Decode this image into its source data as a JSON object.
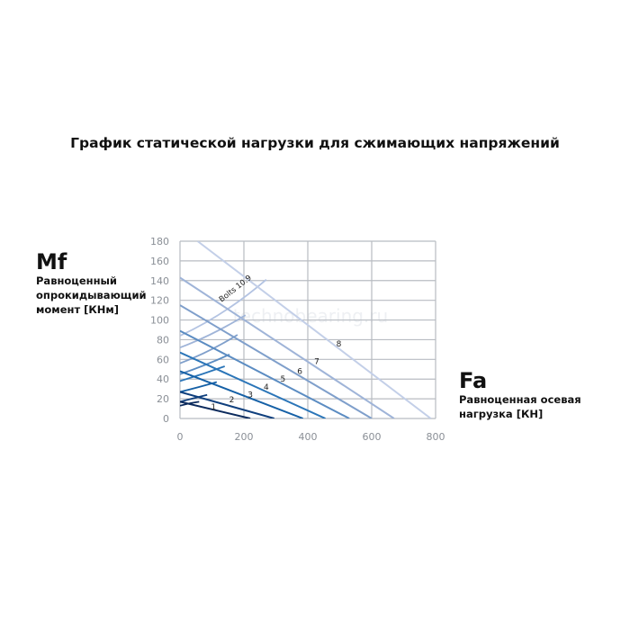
{
  "title": "График статической нагрузки для сжимающих напряжений",
  "y_label": {
    "symbol": "Mf",
    "text": "Равноценный опрокидывающий момент [КНм]"
  },
  "x_label": {
    "symbol": "Fa",
    "text": "Равноценная осевая нагрузка [КН]"
  },
  "watermark": "technobearing.ru",
  "chart_data": {
    "type": "line",
    "title": "График статической нагрузки для сжимающих напряжений",
    "xlabel": "Fa Равноценная осевая нагрузка [КН]",
    "ylabel": "Mf Равноценный опрокидывающий момент [КНм]",
    "xlim": [
      0,
      800
    ],
    "ylim": [
      0,
      180
    ],
    "xticks": [
      "0",
      "200",
      "400",
      "600",
      "800"
    ],
    "yticks": [
      "0",
      "20",
      "40",
      "60",
      "80",
      "100",
      "120",
      "140",
      "160",
      "180"
    ],
    "grid": true,
    "series": [
      {
        "name": "1",
        "color": "#0b2a5c",
        "points": [
          [
            0,
            17
          ],
          [
            220,
            0
          ]
        ]
      },
      {
        "name": "2",
        "color": "#0f3f7d",
        "points": [
          [
            0,
            27
          ],
          [
            295,
            0
          ]
        ]
      },
      {
        "name": "3",
        "color": "#1560a6",
        "points": [
          [
            0,
            48
          ],
          [
            385,
            0
          ]
        ]
      },
      {
        "name": "4",
        "color": "#2a75b8",
        "points": [
          [
            0,
            67
          ],
          [
            455,
            0
          ]
        ]
      },
      {
        "name": "5",
        "color": "#5b8cc2",
        "points": [
          [
            0,
            89
          ],
          [
            530,
            0
          ]
        ]
      },
      {
        "name": "6",
        "color": "#7f9fcb",
        "points": [
          [
            0,
            115
          ],
          [
            600,
            0
          ]
        ]
      },
      {
        "name": "7",
        "color": "#9fb4d8",
        "points": [
          [
            0,
            143
          ],
          [
            670,
            0
          ]
        ]
      },
      {
        "name": "8",
        "color": "#c3cfe8",
        "points": [
          [
            55,
            180
          ],
          [
            785,
            0
          ]
        ]
      }
    ],
    "bolt_curves_label": "Bolts 10.9",
    "bolt_curves": [
      {
        "color": "#0b2a5c",
        "points": [
          [
            0,
            13
          ],
          [
            30,
            14
          ],
          [
            60,
            17
          ]
        ]
      },
      {
        "color": "#0f3f7d",
        "points": [
          [
            0,
            17
          ],
          [
            45,
            19
          ],
          [
            85,
            24
          ]
        ]
      },
      {
        "color": "#1560a6",
        "points": [
          [
            0,
            27
          ],
          [
            60,
            30
          ],
          [
            115,
            37
          ]
        ]
      },
      {
        "color": "#2a75b8",
        "points": [
          [
            0,
            38
          ],
          [
            70,
            43
          ],
          [
            140,
            53
          ]
        ]
      },
      {
        "color": "#5b8cc2",
        "points": [
          [
            0,
            45
          ],
          [
            80,
            52
          ],
          [
            155,
            65
          ]
        ]
      },
      {
        "color": "#7f9fcb",
        "points": [
          [
            0,
            56
          ],
          [
            95,
            66
          ],
          [
            180,
            85
          ]
        ]
      },
      {
        "color": "#9fb4d8",
        "points": [
          [
            0,
            72
          ],
          [
            105,
            83
          ],
          [
            205,
            105
          ]
        ]
      },
      {
        "color": "#b3c3e2",
        "points": [
          [
            0,
            84
          ],
          [
            140,
            103
          ],
          [
            270,
            141
          ]
        ]
      }
    ],
    "line_labels": [
      {
        "text": "1",
        "x": 105,
        "y": 12
      },
      {
        "text": "2",
        "x": 162,
        "y": 19
      },
      {
        "text": "3",
        "x": 220,
        "y": 24
      },
      {
        "text": "4",
        "x": 270,
        "y": 32
      },
      {
        "text": "5",
        "x": 322,
        "y": 40
      },
      {
        "text": "6",
        "x": 375,
        "y": 48
      },
      {
        "text": "7",
        "x": 428,
        "y": 58
      },
      {
        "text": "8",
        "x": 497,
        "y": 76
      }
    ]
  }
}
